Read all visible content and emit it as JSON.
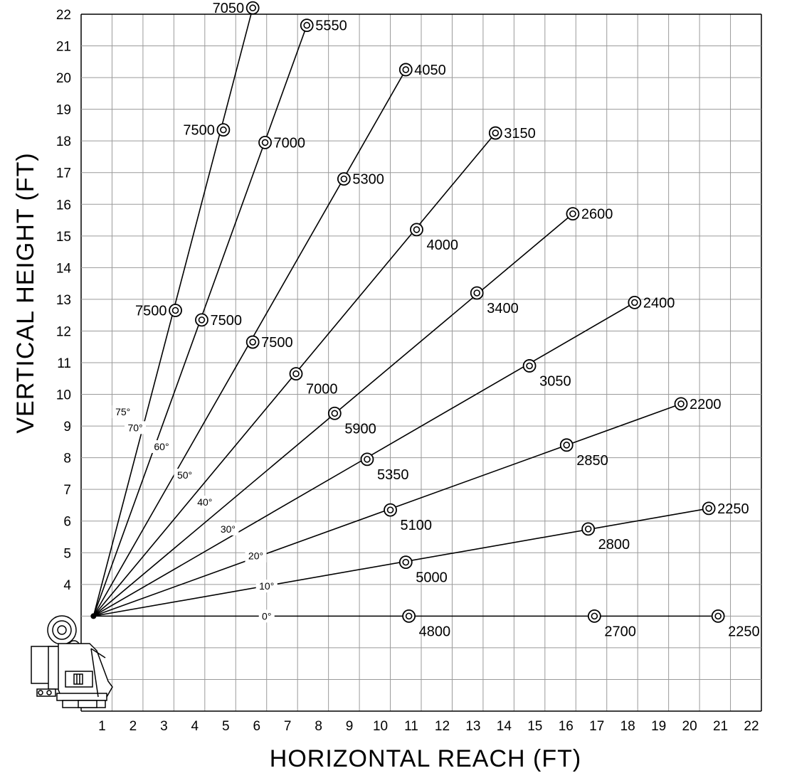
{
  "chart_data": {
    "type": "scatter",
    "xlabel": "HORIZONTAL REACH (FT)",
    "ylabel": "VERTICAL HEIGHT (FT)",
    "xlim": [
      0,
      22
    ],
    "ylim": [
      0,
      22
    ],
    "x_ticks": [
      1,
      2,
      3,
      4,
      5,
      6,
      7,
      8,
      9,
      10,
      11,
      12,
      13,
      14,
      15,
      16,
      17,
      18,
      19,
      20,
      21,
      22
    ],
    "y_ticks": [
      4,
      5,
      6,
      7,
      8,
      9,
      10,
      11,
      12,
      13,
      14,
      15,
      16,
      17,
      18,
      19,
      20,
      21,
      22
    ],
    "grid": true,
    "origin": [
      0.4,
      3
    ],
    "series": [
      {
        "name": "0°",
        "angle_label_at": [
          6.0,
          3.0
        ],
        "points": [
          {
            "x": 10.6,
            "y": 3.0,
            "label": "4800",
            "pos": "br"
          },
          {
            "x": 16.6,
            "y": 3.0,
            "label": "2700",
            "pos": "br"
          },
          {
            "x": 20.6,
            "y": 3.0,
            "label": "2250",
            "pos": "br"
          }
        ]
      },
      {
        "name": "10°",
        "angle_label_at": [
          6.0,
          3.95
        ],
        "points": [
          {
            "x": 10.5,
            "y": 4.7,
            "label": "5000",
            "pos": "br"
          },
          {
            "x": 16.4,
            "y": 5.75,
            "label": "2800",
            "pos": "br"
          },
          {
            "x": 20.3,
            "y": 6.4,
            "label": "2250",
            "pos": "r"
          }
        ]
      },
      {
        "name": "20°",
        "angle_label_at": [
          5.65,
          4.9
        ],
        "points": [
          {
            "x": 10.0,
            "y": 6.35,
            "label": "5100",
            "pos": "br"
          },
          {
            "x": 15.7,
            "y": 8.4,
            "label": "2850",
            "pos": "br"
          },
          {
            "x": 19.4,
            "y": 9.7,
            "label": "2200",
            "pos": "r"
          }
        ]
      },
      {
        "name": "30°",
        "angle_label_at": [
          4.75,
          5.75
        ],
        "points": [
          {
            "x": 9.25,
            "y": 7.95,
            "label": "5350",
            "pos": "br"
          },
          {
            "x": 14.5,
            "y": 10.9,
            "label": "3050",
            "pos": "br"
          },
          {
            "x": 17.9,
            "y": 12.9,
            "label": "2400",
            "pos": "r"
          }
        ]
      },
      {
        "name": "40°",
        "angle_label_at": [
          4.0,
          6.6
        ],
        "points": [
          {
            "x": 8.2,
            "y": 9.4,
            "label": "5900",
            "pos": "br"
          },
          {
            "x": 12.8,
            "y": 13.2,
            "label": "3400",
            "pos": "br"
          },
          {
            "x": 15.9,
            "y": 15.7,
            "label": "2600",
            "pos": "r"
          }
        ]
      },
      {
        "name": "50°",
        "angle_label_at": [
          3.35,
          7.45
        ],
        "points": [
          {
            "x": 6.95,
            "y": 10.65,
            "label": "7000",
            "pos": "br"
          },
          {
            "x": 10.85,
            "y": 15.2,
            "label": "4000",
            "pos": "br"
          },
          {
            "x": 13.4,
            "y": 18.25,
            "label": "3150",
            "pos": "r"
          }
        ]
      },
      {
        "name": "60°",
        "angle_label_at": [
          2.6,
          8.35
        ],
        "points": [
          {
            "x": 5.55,
            "y": 11.65,
            "label": "7500",
            "pos": "r"
          },
          {
            "x": 8.5,
            "y": 16.8,
            "label": "5300",
            "pos": "r"
          },
          {
            "x": 10.5,
            "y": 20.25,
            "label": "4050",
            "pos": "r"
          }
        ]
      },
      {
        "name": "70°",
        "angle_label_at": [
          1.75,
          8.95
        ],
        "points": [
          {
            "x": 3.9,
            "y": 12.35,
            "label": "7500",
            "pos": "r"
          },
          {
            "x": 5.95,
            "y": 17.95,
            "label": "7000",
            "pos": "r"
          },
          {
            "x": 7.3,
            "y": 21.65,
            "label": "5550",
            "pos": "r"
          }
        ]
      },
      {
        "name": "75°",
        "angle_label_at": [
          1.35,
          9.45
        ],
        "points": [
          {
            "x": 3.05,
            "y": 12.65,
            "label": "7500",
            "pos": "l"
          },
          {
            "x": 4.6,
            "y": 18.35,
            "label": "7500",
            "pos": "l"
          },
          {
            "x": 5.55,
            "y": 22.2,
            "label": "7050",
            "pos": "l"
          }
        ]
      }
    ]
  }
}
